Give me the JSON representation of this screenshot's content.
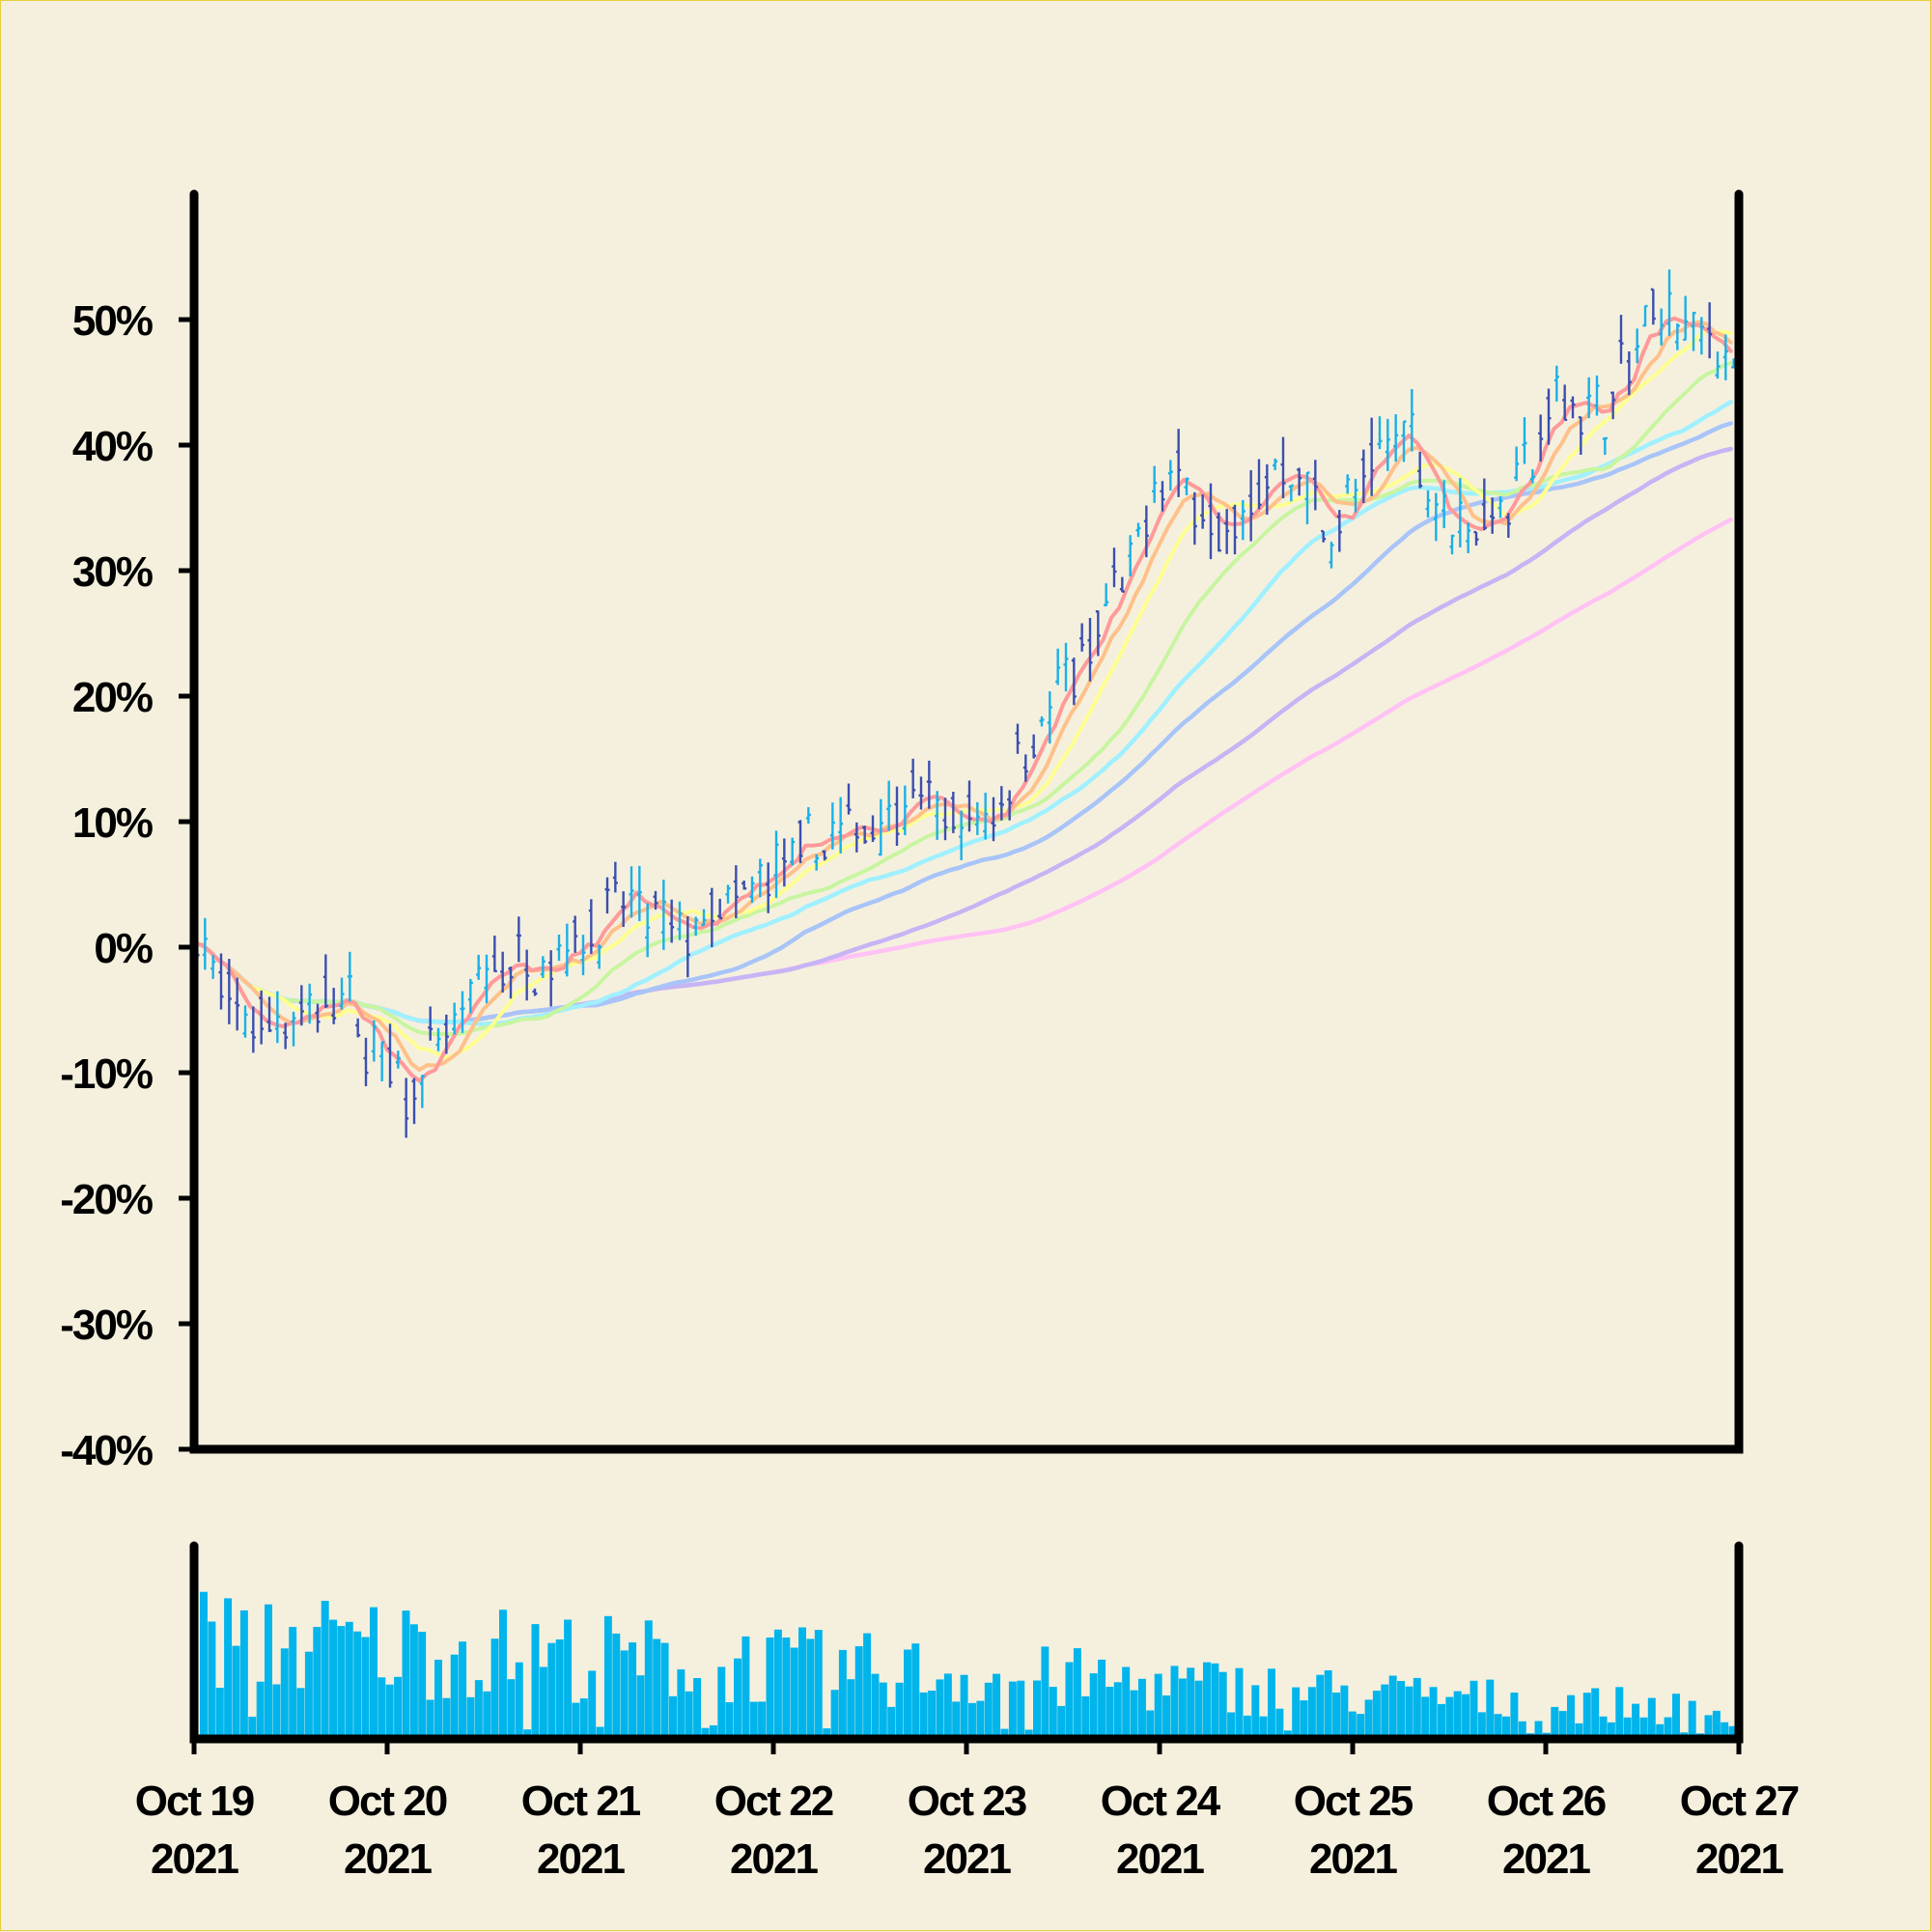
{
  "colors": {
    "background": "#f5f0de",
    "frame_border": "#e6cf3c",
    "up_bar": "#1ab0e8",
    "down_bar": "#3a4fb0",
    "volume_bar": "#00b4ec",
    "axis": "#000000"
  },
  "chart_data": {
    "type": "line",
    "title": "",
    "xlabel": "",
    "ylabel": "",
    "price_ylim": [
      -40,
      60
    ],
    "y_ticks": [
      {
        "value": -40,
        "label": "-40%"
      },
      {
        "value": -30,
        "label": "-30%"
      },
      {
        "value": -20,
        "label": "-20%"
      },
      {
        "value": -10,
        "label": "-10%"
      },
      {
        "value": 0,
        "label": "0%"
      },
      {
        "value": 10,
        "label": "10%"
      },
      {
        "value": 20,
        "label": "20%"
      },
      {
        "value": 30,
        "label": "30%"
      },
      {
        "value": 40,
        "label": "40%"
      },
      {
        "value": 50,
        "label": "50%"
      }
    ],
    "x_ticks": [
      {
        "day": 0,
        "line1": "Oct 19",
        "line2": "2021"
      },
      {
        "day": 1,
        "line1": "Oct 20",
        "line2": "2021"
      },
      {
        "day": 2,
        "line1": "Oct 21",
        "line2": "2021"
      },
      {
        "day": 3,
        "line1": "Oct 22",
        "line2": "2021"
      },
      {
        "day": 4,
        "line1": "Oct 23",
        "line2": "2021"
      },
      {
        "day": 5,
        "line1": "Oct 24",
        "line2": "2021"
      },
      {
        "day": 6,
        "line1": "Oct 25",
        "line2": "2021"
      },
      {
        "day": 7,
        "line1": "Oct 26",
        "line2": "2021"
      },
      {
        "day": 8,
        "line1": "Oct 27",
        "line2": "2021"
      }
    ],
    "grid": false,
    "legend": "none",
    "price_path": {
      "points_per_day": 24,
      "anchors": [
        [
          0.0,
          1.5
        ],
        [
          0.1,
          -3
        ],
        [
          0.25,
          -6
        ],
        [
          0.5,
          -5.5
        ],
        [
          0.75,
          -4
        ],
        [
          0.9,
          -8
        ],
        [
          1.1,
          -11.5
        ],
        [
          1.3,
          -7
        ],
        [
          1.55,
          -1.5
        ],
        [
          1.8,
          -1
        ],
        [
          2.05,
          1.5
        ],
        [
          2.2,
          3.5
        ],
        [
          2.5,
          1
        ],
        [
          2.75,
          3
        ],
        [
          3.0,
          6
        ],
        [
          3.25,
          8.5
        ],
        [
          3.5,
          10
        ],
        [
          3.7,
          12
        ],
        [
          3.9,
          10
        ],
        [
          4.1,
          10
        ],
        [
          4.3,
          16.5
        ],
        [
          4.55,
          22
        ],
        [
          4.8,
          29
        ],
        [
          5.0,
          37.5
        ],
        [
          5.2,
          36
        ],
        [
          5.3,
          32
        ],
        [
          5.45,
          35
        ],
        [
          5.6,
          38.5
        ],
        [
          5.75,
          37
        ],
        [
          5.85,
          33
        ],
        [
          6.0,
          36
        ],
        [
          6.15,
          39.5
        ],
        [
          6.25,
          42
        ],
        [
          6.4,
          36
        ],
        [
          6.55,
          33.5
        ],
        [
          6.75,
          35
        ],
        [
          6.9,
          38.5
        ],
        [
          7.05,
          44
        ],
        [
          7.25,
          42.5
        ],
        [
          7.4,
          46
        ],
        [
          7.55,
          50.5
        ],
        [
          7.75,
          49
        ],
        [
          7.9,
          47.5
        ],
        [
          8.0,
          48
        ]
      ]
    },
    "volume": {
      "bars": 190,
      "start_level": 0.72,
      "end_level": 0.2
    },
    "moving_averages": [
      {
        "window": 5,
        "color": "#ff9a9a",
        "width": 4
      },
      {
        "window": 8,
        "color": "#ffc08a",
        "width": 4
      },
      {
        "window": 12,
        "color": "#ffff90",
        "width": 4
      },
      {
        "window": 24,
        "color": "#c8f5a0",
        "width": 4
      },
      {
        "window": 34,
        "color": "#a0f0ff",
        "width": 4.5
      },
      {
        "window": 48,
        "color": "#a8c4f8",
        "width": 4.5
      },
      {
        "window": 72,
        "color": "#c6b4f4",
        "width": 4.5
      },
      {
        "window": 100,
        "color": "#ffc2f4",
        "width": 4.5
      }
    ]
  }
}
